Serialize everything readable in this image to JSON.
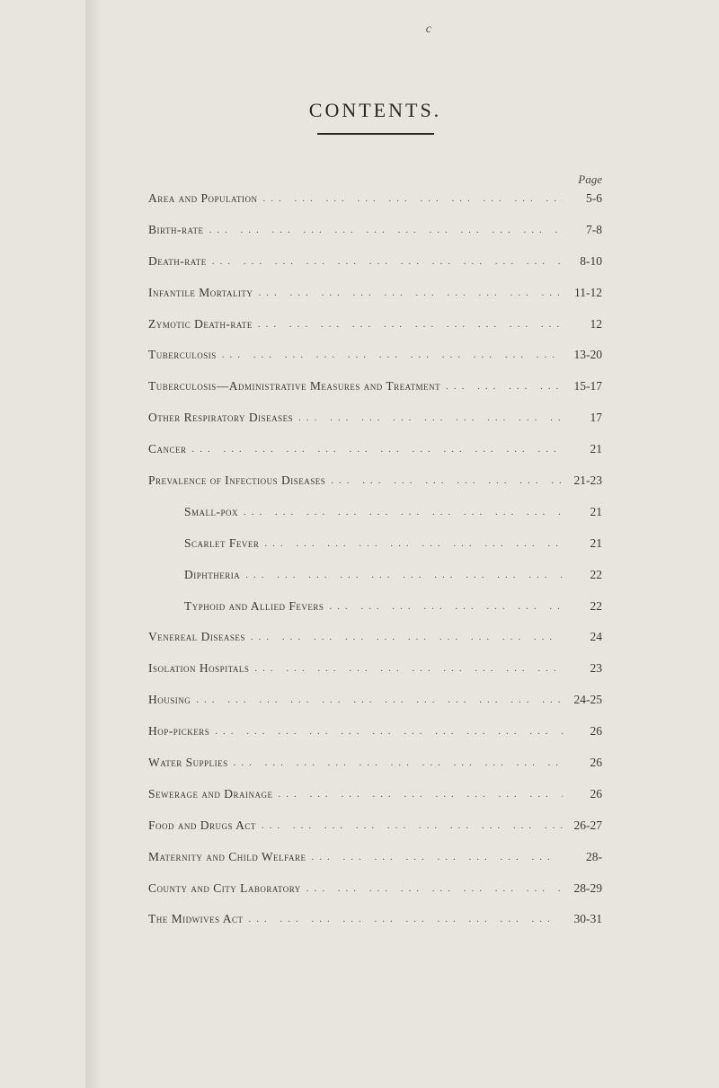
{
  "top_mark": "c",
  "title": "CONTENTS.",
  "page_label": "Page",
  "dot_fill": "...  ...  ...  ...  ...  ...  ...  ...  ...  ...  ...  ...  ...",
  "entries": [
    {
      "label": "Area and Population",
      "page": "5-6",
      "indent": false
    },
    {
      "label": "Birth-rate",
      "page": "7-8",
      "indent": false
    },
    {
      "label": "Death-rate",
      "page": "8-10",
      "indent": false
    },
    {
      "label": "Infantile Mortality",
      "page": "11-12",
      "indent": false
    },
    {
      "label": "Zymotic Death-rate",
      "page": "12",
      "indent": false
    },
    {
      "label": "Tuberculosis",
      "page": "13-20",
      "indent": false
    },
    {
      "label": "Tuberculosis—Administrative Measures and Treatment",
      "page": "15-17",
      "indent": false
    },
    {
      "label": "Other Respiratory Diseases",
      "page": "17",
      "indent": false
    },
    {
      "label": "Cancer",
      "page": "21",
      "indent": false
    },
    {
      "label": "Prevalence of Infectious Diseases",
      "page": "21-23",
      "indent": false
    },
    {
      "label": "Small-pox",
      "page": "21",
      "indent": true
    },
    {
      "label": "Scarlet Fever",
      "page": "21",
      "indent": true
    },
    {
      "label": "Diphtheria",
      "page": "22",
      "indent": true
    },
    {
      "label": "Typhoid and Allied Fevers",
      "page": "22",
      "indent": true
    },
    {
      "label": "Venereal Diseases",
      "page": "24",
      "indent": false
    },
    {
      "label": "Isolation Hospitals",
      "page": "23",
      "indent": false
    },
    {
      "label": "Housing",
      "page": "24-25",
      "indent": false
    },
    {
      "label": "Hop-pickers",
      "page": "26",
      "indent": false
    },
    {
      "label": "Water Supplies",
      "page": "26",
      "indent": false
    },
    {
      "label": "Sewerage and Drainage",
      "page": "26",
      "indent": false
    },
    {
      "label": "Food and Drugs Act",
      "page": "26-27",
      "indent": false
    },
    {
      "label": "Maternity and Child Welfare",
      "page": "28-",
      "indent": false
    },
    {
      "label": "County and City Laboratory",
      "page": "28-29",
      "indent": false
    },
    {
      "label": "The Midwives Act",
      "page": "30-31",
      "indent": false
    }
  ]
}
